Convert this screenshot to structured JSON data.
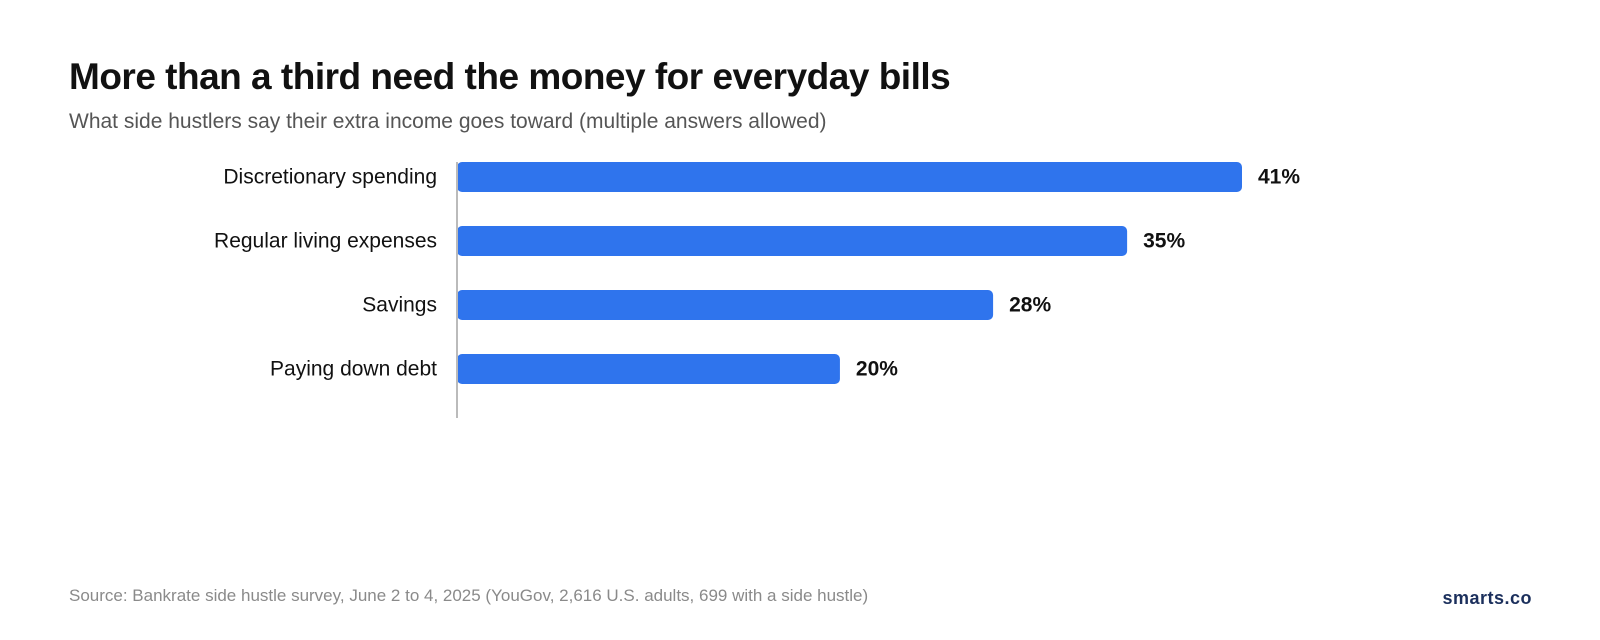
{
  "chart_data": {
    "type": "bar",
    "orientation": "horizontal",
    "title": "More than a third need the money for everyday bills",
    "subtitle": "What side hustlers say their extra income goes toward (multiple answers allowed)",
    "categories": [
      "Discretionary spending",
      "Regular living expenses",
      "Savings",
      "Paying down debt"
    ],
    "values": [
      41,
      35,
      28,
      20
    ],
    "value_labels": [
      "41%",
      "35%",
      "28%",
      "20%"
    ],
    "unit": "%",
    "xlim": [
      0,
      41
    ],
    "grid": false,
    "bar_color": "#2f74ed",
    "axis_color": "#bbbbbb"
  },
  "footer": {
    "source": "Source: Bankrate side hustle survey, June 2 to 4, 2025 (YouGov, 2,616 U.S. adults, 699 with a side hustle)",
    "brand": "smarts.co"
  }
}
